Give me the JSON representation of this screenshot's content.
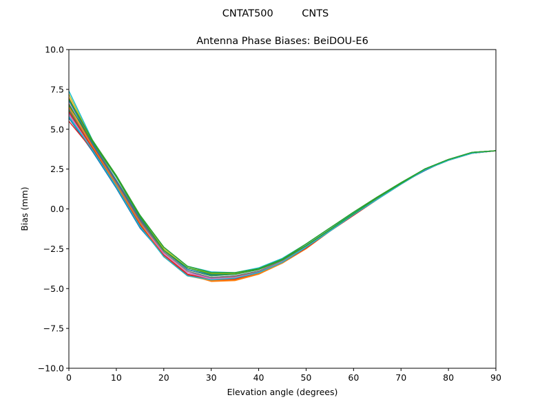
{
  "figure": {
    "suptitle": "CNTAT500         CNTS"
  },
  "chart_data": {
    "type": "line",
    "title": "Antenna Phase Biases: BeiDOU-E6",
    "xlabel": "Elevation angle (degrees)",
    "ylabel": "Bias (mm)",
    "xlim": [
      0,
      90
    ],
    "ylim": [
      -10,
      10
    ],
    "xticks": [
      0,
      10,
      20,
      30,
      40,
      50,
      60,
      70,
      80,
      90
    ],
    "xtick_labels": [
      "0",
      "10",
      "20",
      "30",
      "40",
      "50",
      "60",
      "70",
      "80",
      "90"
    ],
    "yticks": [
      -10,
      -7.5,
      -5,
      -2.5,
      0,
      2.5,
      5,
      7.5,
      10
    ],
    "ytick_labels": [
      "−10.0",
      "−7.5",
      "−5.0",
      "−2.5",
      "0.0",
      "2.5",
      "5.0",
      "7.5",
      "10.0"
    ],
    "grid": false,
    "legend": false,
    "x": [
      0,
      5,
      10,
      15,
      20,
      25,
      30,
      35,
      40,
      45,
      50,
      55,
      60,
      65,
      70,
      75,
      80,
      85,
      90
    ],
    "series": [
      {
        "color": "#1f77b4",
        "values": [
          5.7,
          3.6,
          1.3,
          -1.2,
          -2.9,
          -4.0,
          -4.3,
          -4.2,
          -3.9,
          -3.3,
          -2.4,
          -1.4,
          -0.4,
          0.6,
          1.6,
          2.4,
          3.1,
          3.5,
          3.65
        ]
      },
      {
        "color": "#ff7f0e",
        "values": [
          7.0,
          4.1,
          1.6,
          -0.8,
          -2.8,
          -4.1,
          -4.55,
          -4.5,
          -4.1,
          -3.4,
          -2.5,
          -1.4,
          -0.4,
          0.6,
          1.6,
          2.5,
          3.1,
          3.55,
          3.65
        ]
      },
      {
        "color": "#2ca02c",
        "values": [
          6.2,
          3.9,
          1.7,
          -0.6,
          -2.6,
          -3.8,
          -4.2,
          -4.1,
          -3.8,
          -3.2,
          -2.3,
          -1.3,
          -0.3,
          0.7,
          1.6,
          2.5,
          3.1,
          3.5,
          3.65
        ]
      },
      {
        "color": "#d62728",
        "values": [
          5.5,
          3.7,
          1.5,
          -0.9,
          -2.9,
          -4.1,
          -4.4,
          -4.35,
          -4.0,
          -3.35,
          -2.45,
          -1.4,
          -0.35,
          0.65,
          1.6,
          2.45,
          3.1,
          3.5,
          3.65
        ]
      },
      {
        "color": "#9467bd",
        "values": [
          6.0,
          3.8,
          1.6,
          -0.8,
          -2.8,
          -4.0,
          -4.35,
          -4.3,
          -3.95,
          -3.3,
          -2.4,
          -1.35,
          -0.35,
          0.65,
          1.6,
          2.45,
          3.1,
          3.5,
          3.65
        ]
      },
      {
        "color": "#8c564b",
        "values": [
          6.6,
          4.0,
          1.7,
          -0.7,
          -2.7,
          -3.9,
          -4.3,
          -4.25,
          -3.9,
          -3.3,
          -2.4,
          -1.35,
          -0.35,
          0.65,
          1.6,
          2.45,
          3.1,
          3.5,
          3.65
        ]
      },
      {
        "color": "#e377c2",
        "values": [
          5.9,
          3.8,
          1.5,
          -0.9,
          -2.8,
          -4.0,
          -4.4,
          -4.3,
          -4.0,
          -3.3,
          -2.4,
          -1.4,
          -0.35,
          0.65,
          1.6,
          2.45,
          3.1,
          3.5,
          3.65
        ]
      },
      {
        "color": "#7f7f7f",
        "values": [
          6.3,
          3.9,
          1.6,
          -0.8,
          -2.7,
          -3.9,
          -4.3,
          -4.2,
          -3.9,
          -3.25,
          -2.35,
          -1.35,
          -0.3,
          0.65,
          1.6,
          2.45,
          3.1,
          3.5,
          3.65
        ]
      },
      {
        "color": "#bcbd22",
        "values": [
          7.2,
          4.2,
          1.8,
          -0.5,
          -2.5,
          -3.7,
          -4.05,
          -4.05,
          -3.75,
          -3.15,
          -2.3,
          -1.3,
          -0.3,
          0.7,
          1.6,
          2.5,
          3.1,
          3.55,
          3.65
        ]
      },
      {
        "color": "#17becf",
        "values": [
          7.4,
          4.3,
          2.0,
          -0.4,
          -2.4,
          -3.6,
          -3.95,
          -4.0,
          -3.7,
          -3.1,
          -2.2,
          -1.2,
          -0.25,
          0.7,
          1.6,
          2.5,
          3.1,
          3.55,
          3.65
        ]
      },
      {
        "color": "#1f77b4",
        "values": [
          6.8,
          4.1,
          1.8,
          -0.6,
          -2.6,
          -3.8,
          -4.15,
          -4.1,
          -3.8,
          -3.2,
          -2.3,
          -1.3,
          -0.3,
          0.7,
          1.6,
          2.5,
          3.1,
          3.55,
          3.65
        ]
      },
      {
        "color": "#2ca02c",
        "values": [
          6.9,
          4.3,
          2.1,
          -0.4,
          -2.4,
          -3.6,
          -4.0,
          -4.0,
          -3.75,
          -3.15,
          -2.2,
          -1.2,
          -0.2,
          0.75,
          1.65,
          2.5,
          3.1,
          3.55,
          3.65
        ]
      },
      {
        "color": "#ff7f0e",
        "values": [
          6.4,
          3.9,
          1.5,
          -0.9,
          -3.0,
          -4.2,
          -4.5,
          -4.45,
          -4.05,
          -3.4,
          -2.45,
          -1.4,
          -0.4,
          0.6,
          1.55,
          2.45,
          3.05,
          3.5,
          3.65
        ]
      },
      {
        "color": "#d62728",
        "values": [
          6.1,
          3.8,
          1.4,
          -1.0,
          -3.0,
          -4.15,
          -4.45,
          -4.4,
          -4.0,
          -3.35,
          -2.45,
          -1.4,
          -0.4,
          0.6,
          1.55,
          2.45,
          3.05,
          3.5,
          3.65
        ]
      },
      {
        "color": "#17becf",
        "values": [
          5.8,
          3.7,
          1.4,
          -1.1,
          -3.0,
          -4.2,
          -4.45,
          -4.35,
          -4.0,
          -3.35,
          -2.4,
          -1.4,
          -0.35,
          0.6,
          1.55,
          2.45,
          3.05,
          3.5,
          3.65
        ]
      },
      {
        "color": "#2ca02c",
        "values": [
          6.5,
          4.2,
          2.0,
          -0.5,
          -2.6,
          -3.7,
          -4.1,
          -4.1,
          -3.8,
          -3.2,
          -2.3,
          -1.3,
          -0.3,
          0.7,
          1.6,
          2.5,
          3.1,
          3.55,
          3.65
        ]
      }
    ]
  }
}
